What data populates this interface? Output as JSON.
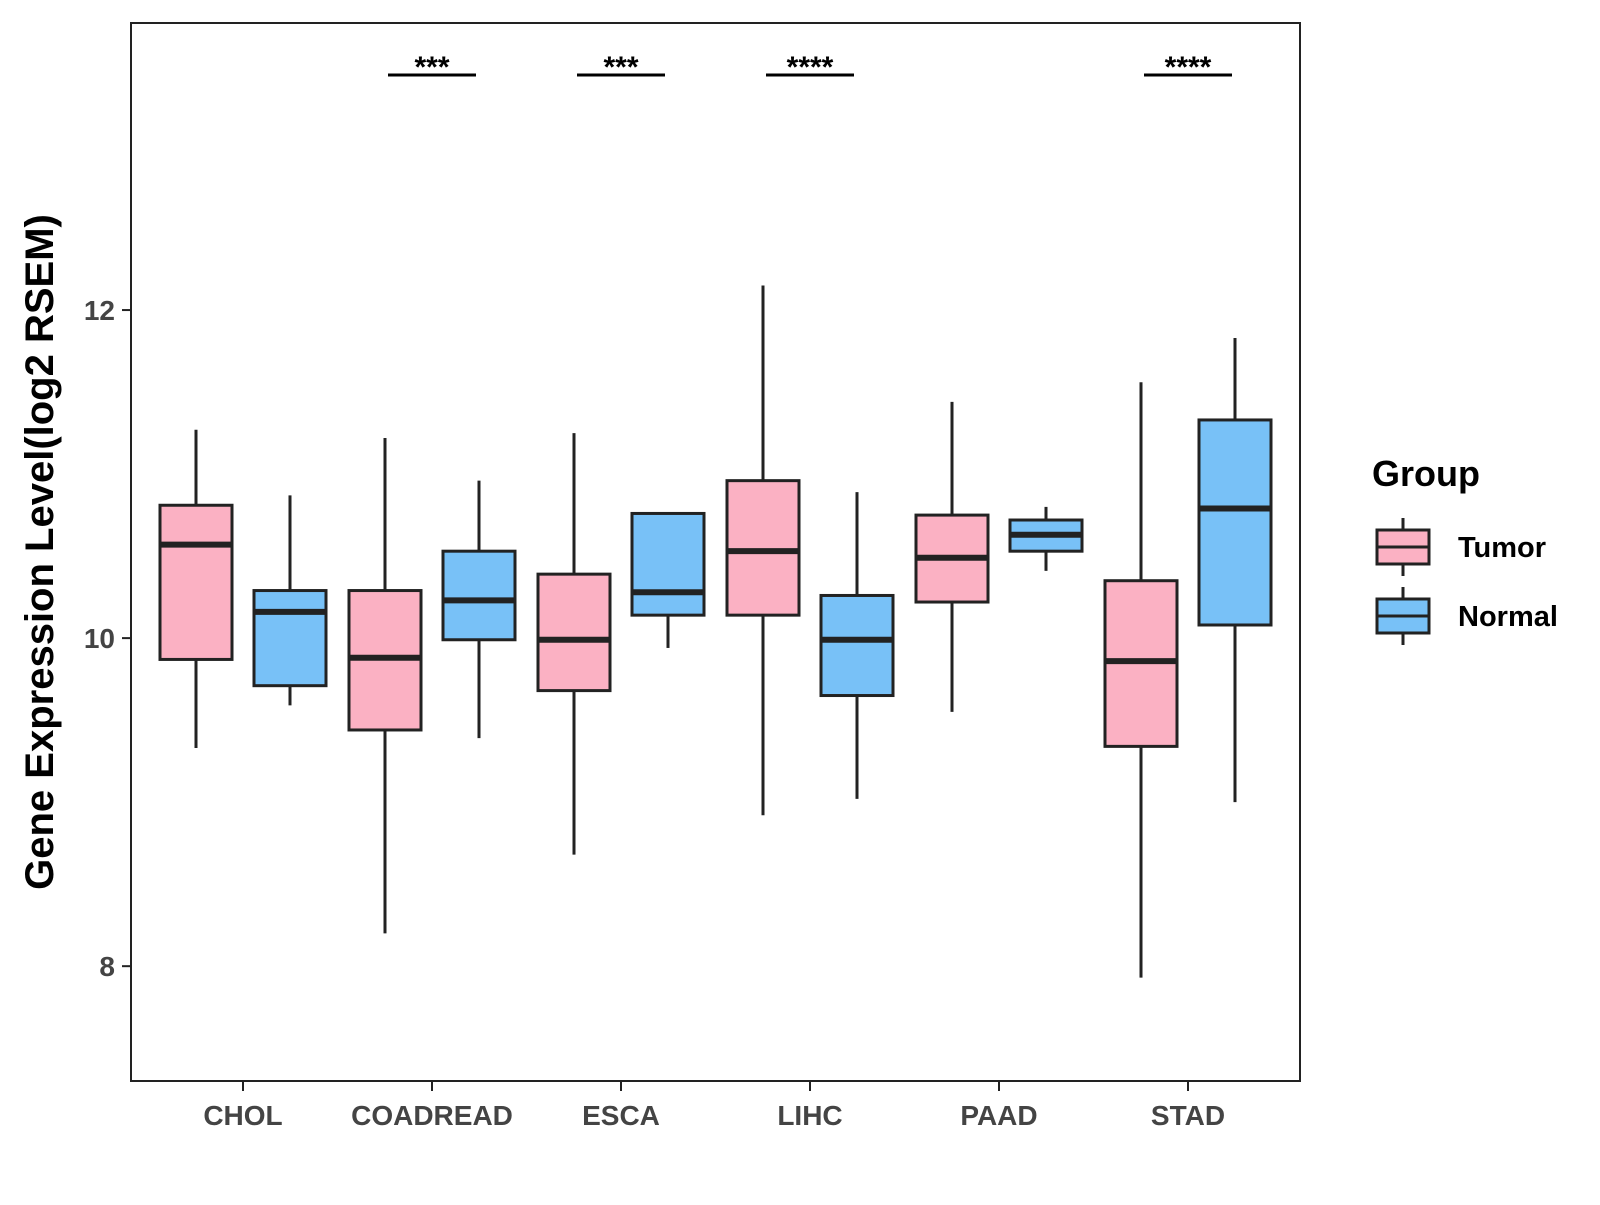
{
  "chart_data": {
    "type": "box",
    "ylabel": "Gene Expression Level(log2 RSEM)",
    "xlabel": "",
    "ylim": [
      7.3,
      13.75
    ],
    "yticks": [
      8,
      10,
      12
    ],
    "grid": false,
    "legend": {
      "title": "Group",
      "position": "right",
      "entries": [
        "Tumor",
        "Normal"
      ]
    },
    "colors": {
      "Tumor": "#fbb1c3",
      "Normal": "#78c1f7",
      "outline": "#222222"
    },
    "categories": [
      "CHOL",
      "COADREAD",
      "ESCA",
      "LIHC",
      "PAAD",
      "STAD"
    ],
    "series": [
      {
        "name": "Tumor",
        "boxes": [
          {
            "min": 9.33,
            "q1": 9.87,
            "median": 10.57,
            "q3": 10.81,
            "max": 11.27
          },
          {
            "min": 8.2,
            "q1": 9.44,
            "median": 9.88,
            "q3": 10.29,
            "max": 11.22
          },
          {
            "min": 8.68,
            "q1": 9.68,
            "median": 9.99,
            "q3": 10.39,
            "max": 11.25
          },
          {
            "min": 8.92,
            "q1": 10.14,
            "median": 10.53,
            "q3": 10.96,
            "max": 12.15
          },
          {
            "min": 9.55,
            "q1": 10.22,
            "median": 10.49,
            "q3": 10.75,
            "max": 11.44
          },
          {
            "min": 7.93,
            "q1": 9.34,
            "median": 9.86,
            "q3": 10.35,
            "max": 11.56
          }
        ]
      },
      {
        "name": "Normal",
        "boxes": [
          {
            "min": 9.59,
            "q1": 9.71,
            "median": 10.16,
            "q3": 10.29,
            "max": 10.87
          },
          {
            "min": 9.39,
            "q1": 9.99,
            "median": 10.23,
            "q3": 10.53,
            "max": 10.96
          },
          {
            "min": 9.94,
            "q1": 10.14,
            "median": 10.28,
            "q3": 10.76,
            "max": 10.76
          },
          {
            "min": 9.02,
            "q1": 9.65,
            "median": 9.99,
            "q3": 10.26,
            "max": 10.89
          },
          {
            "min": 10.41,
            "q1": 10.53,
            "median": 10.63,
            "q3": 10.72,
            "max": 10.8
          },
          {
            "min": 9.0,
            "q1": 10.08,
            "median": 10.79,
            "q3": 11.33,
            "max": 11.83
          }
        ]
      }
    ],
    "annotations": [
      {
        "category": "COADREAD",
        "label": "***"
      },
      {
        "category": "ESCA",
        "label": "***"
      },
      {
        "category": "LIHC",
        "label": "****"
      },
      {
        "category": "STAD",
        "label": "****"
      }
    ]
  }
}
